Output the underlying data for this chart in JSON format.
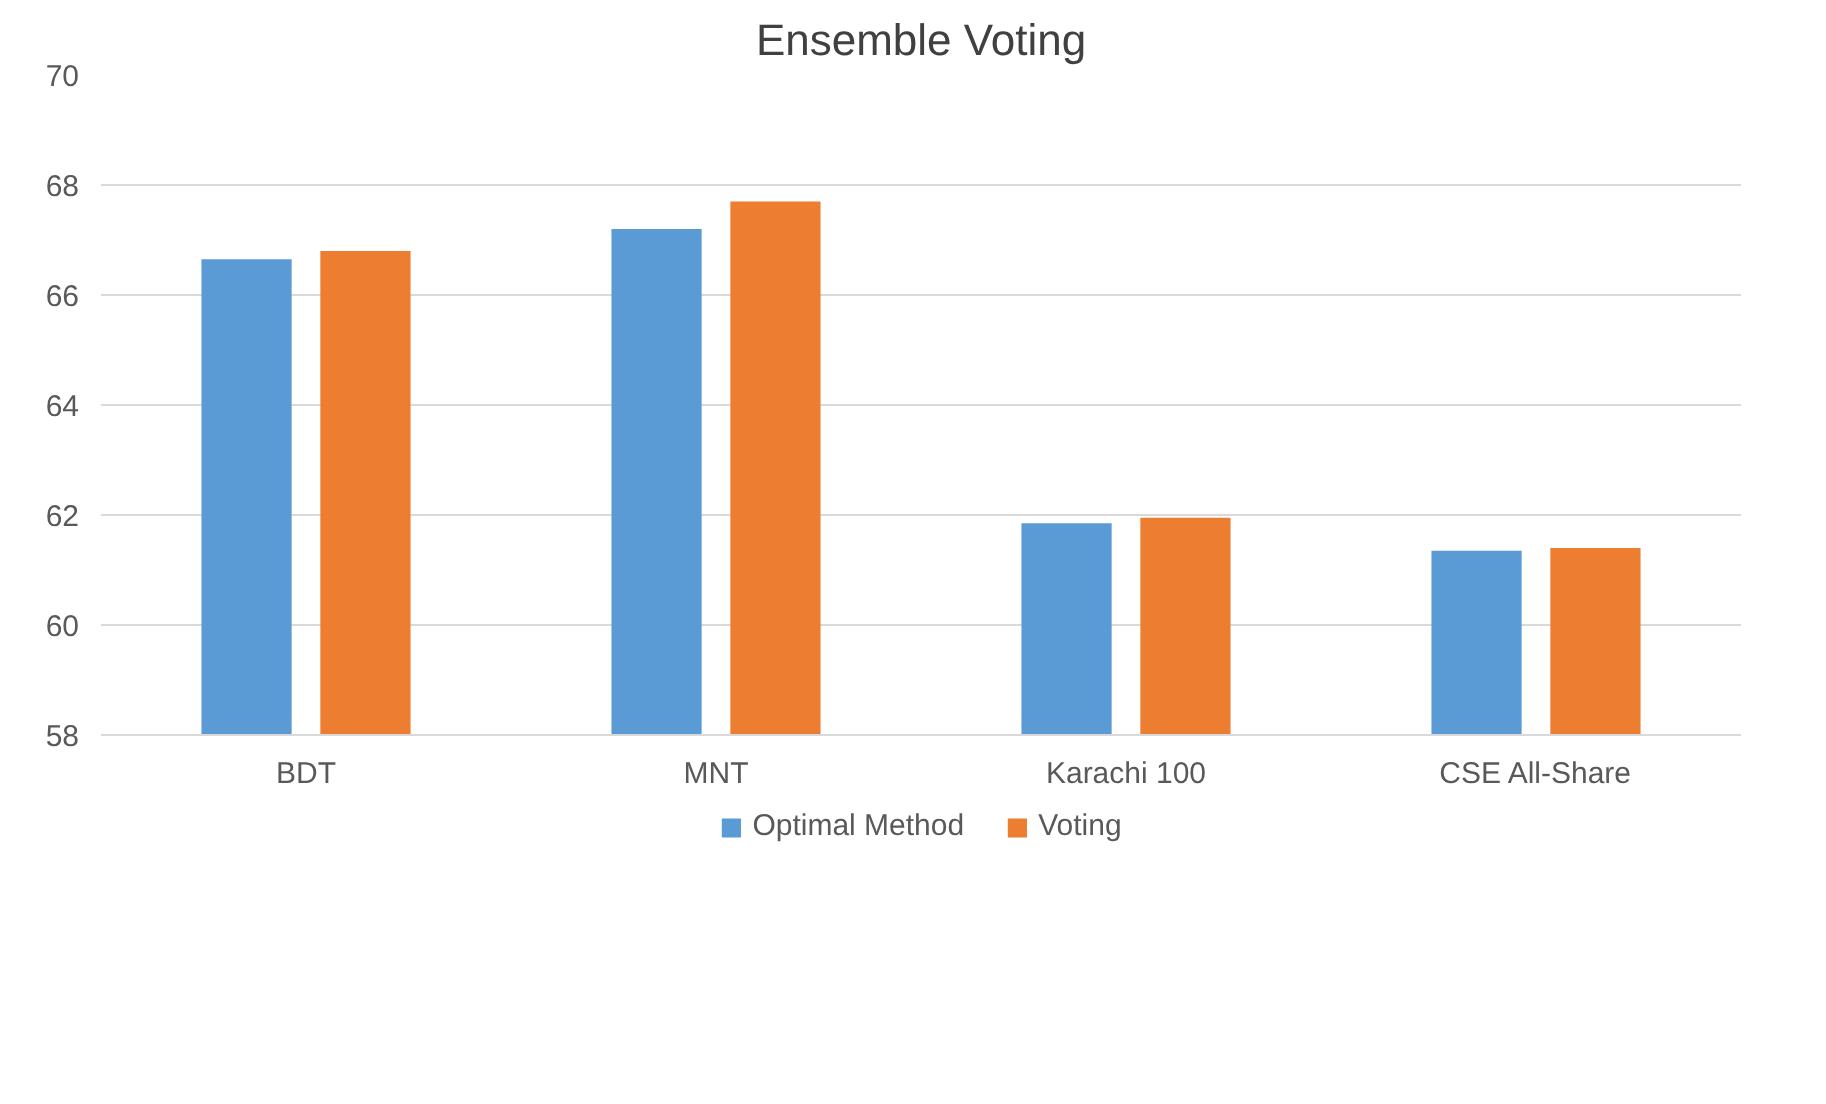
{
  "chart_data": {
    "type": "bar",
    "title": "Ensemble Voting",
    "categories": [
      "BDT",
      "MNT",
      "Karachi 100",
      "CSE All-Share"
    ],
    "series": [
      {
        "name": "Optimal Method",
        "color": "#5b9bd5",
        "values": [
          66.65,
          67.2,
          61.85,
          61.35
        ]
      },
      {
        "name": "Voting",
        "color": "#ed7d31",
        "values": [
          66.8,
          67.7,
          61.95,
          61.4
        ]
      }
    ],
    "ylim": [
      58,
      70
    ],
    "yticks": [
      58,
      60,
      62,
      64,
      66,
      68,
      70
    ],
    "grid": "y",
    "legend": "bottom"
  }
}
